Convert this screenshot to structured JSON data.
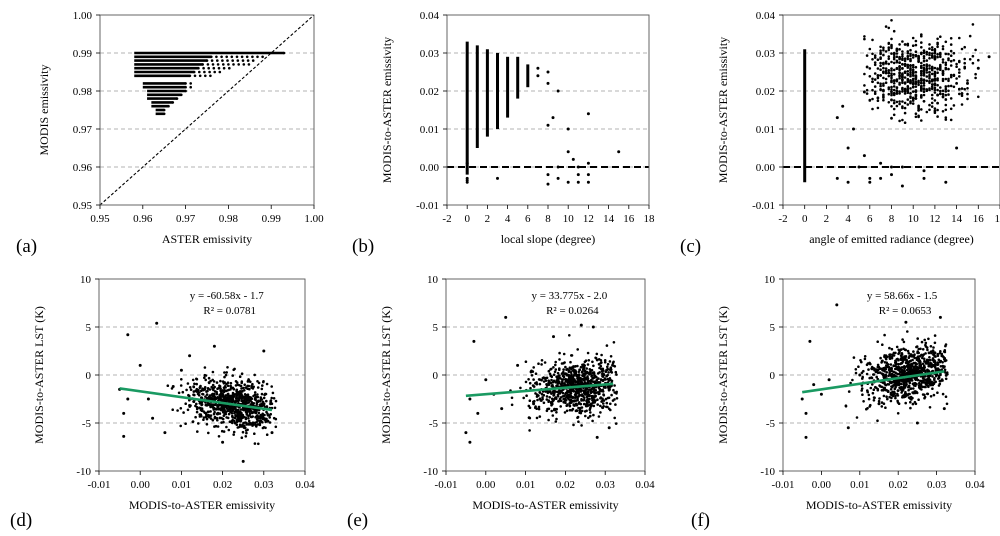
{
  "figure": {
    "panel_labels": [
      "(a)",
      "(b)",
      "(c)",
      "(d)",
      "(e)",
      "(f)"
    ]
  },
  "chart_data": [
    {
      "id": "a",
      "type": "scatter",
      "xlabel": "ASTER emissivity",
      "ylabel": "MODIS emissivity",
      "xlim": [
        0.95,
        1.0
      ],
      "ylim": [
        0.95,
        1.0
      ],
      "xticks": [
        0.95,
        0.96,
        0.97,
        0.98,
        0.99,
        1.0
      ],
      "yticks": [
        0.95,
        0.96,
        0.97,
        0.98,
        0.99,
        1.0
      ],
      "tick_decimals": 2,
      "grid_y": true,
      "reference_line": {
        "style": "dashed",
        "x": [
          0.95,
          1.0
        ],
        "y": [
          0.95,
          1.0
        ]
      },
      "rows": [
        {
          "y": 0.99,
          "x_start": 0.958,
          "x_end": 0.993,
          "tail_to": 0.994
        },
        {
          "y": 0.989,
          "x_start": 0.958,
          "x_end": 0.976,
          "tail_to": 0.988
        },
        {
          "y": 0.988,
          "x_start": 0.958,
          "x_end": 0.975,
          "tail_to": 0.986
        },
        {
          "y": 0.987,
          "x_start": 0.958,
          "x_end": 0.974,
          "tail_to": 0.985
        },
        {
          "y": 0.986,
          "x_start": 0.958,
          "x_end": 0.973,
          "tail_to": 0.981
        },
        {
          "y": 0.985,
          "x_start": 0.958,
          "x_end": 0.972,
          "tail_to": 0.978
        },
        {
          "y": 0.984,
          "x_start": 0.958,
          "x_end": 0.971,
          "tail_to": 0.976
        },
        {
          "y": 0.982,
          "x_start": 0.96,
          "x_end": 0.97,
          "tail_to": 0.972
        },
        {
          "y": 0.981,
          "x_start": 0.96,
          "x_end": 0.97,
          "tail_to": 0.972
        },
        {
          "y": 0.98,
          "x_start": 0.961,
          "x_end": 0.97,
          "tail_to": 0.971
        },
        {
          "y": 0.979,
          "x_start": 0.961,
          "x_end": 0.969,
          "tail_to": 0.97
        },
        {
          "y": 0.978,
          "x_start": 0.961,
          "x_end": 0.968,
          "tail_to": 0.969
        },
        {
          "y": 0.977,
          "x_start": 0.962,
          "x_end": 0.967,
          "tail_to": 0.968
        },
        {
          "y": 0.976,
          "x_start": 0.962,
          "x_end": 0.966,
          "tail_to": 0.967
        },
        {
          "y": 0.975,
          "x_start": 0.963,
          "x_end": 0.965,
          "tail_to": 0.966
        },
        {
          "y": 0.974,
          "x_start": 0.963,
          "x_end": 0.965,
          "tail_to": 0.965
        }
      ]
    },
    {
      "id": "b",
      "type": "scatter",
      "xlabel": "local slope (degree)",
      "ylabel": "MODIS-to-ASTER emissivity",
      "xlim": [
        -2,
        18
      ],
      "ylim": [
        -0.01,
        0.04
      ],
      "xticks": [
        -2,
        0,
        2,
        4,
        6,
        8,
        10,
        12,
        14,
        16,
        18
      ],
      "yticks": [
        -0.01,
        0.0,
        0.01,
        0.02,
        0.03,
        0.04
      ],
      "tick_decimals": 2,
      "grid_y": true,
      "zero_line": true,
      "columns": [
        {
          "x": 0,
          "y_min": -0.002,
          "y_max": 0.033
        },
        {
          "x": 1,
          "y_min": 0.005,
          "y_max": 0.032
        },
        {
          "x": 2,
          "y_min": 0.008,
          "y_max": 0.031
        },
        {
          "x": 3,
          "y_min": 0.01,
          "y_max": 0.03
        },
        {
          "x": 4,
          "y_min": 0.013,
          "y_max": 0.029
        },
        {
          "x": 5,
          "y_min": 0.018,
          "y_max": 0.029
        },
        {
          "x": 6,
          "y_min": 0.021,
          "y_max": 0.027
        }
      ],
      "points": [
        [
          0,
          -0.004
        ],
        [
          0,
          -0.0035
        ],
        [
          0,
          -0.003
        ],
        [
          0,
          0.001
        ],
        [
          3,
          -0.003
        ],
        [
          7,
          0.026
        ],
        [
          7,
          0.024
        ],
        [
          8,
          0.025
        ],
        [
          8,
          0.022
        ],
        [
          8,
          0.011
        ],
        [
          8,
          -0.002
        ],
        [
          8,
          -0.0045
        ],
        [
          8.5,
          0.013
        ],
        [
          9,
          0.02
        ],
        [
          9,
          0.0
        ],
        [
          9,
          -0.003
        ],
        [
          10,
          0.01
        ],
        [
          10,
          0.004
        ],
        [
          10,
          -0.004
        ],
        [
          10.5,
          0.002
        ],
        [
          11,
          0.0
        ],
        [
          11,
          -0.002
        ],
        [
          11,
          -0.004
        ],
        [
          12,
          0.014
        ],
        [
          12,
          0.001
        ],
        [
          12,
          -0.002
        ],
        [
          12,
          -0.004
        ],
        [
          15,
          0.004
        ]
      ]
    },
    {
      "id": "c",
      "type": "scatter",
      "xlabel": "angle of emitted radiance (degree)",
      "ylabel": "MODIS-to-ASTER emissivity",
      "xlim": [
        -2,
        18
      ],
      "ylim": [
        -0.01,
        0.04
      ],
      "xticks": [
        -2,
        0,
        2,
        4,
        6,
        8,
        10,
        12,
        14,
        16,
        18
      ],
      "yticks": [
        -0.01,
        0.0,
        0.01,
        0.02,
        0.03,
        0.04
      ],
      "tick_decimals": 2,
      "grid_y": true,
      "zero_line": true,
      "columns": [
        {
          "x": 0,
          "y_min": -0.004,
          "y_max": 0.031
        }
      ],
      "cloud": {
        "x_center": 10,
        "y_center": 0.024,
        "x_spread": 2.6,
        "y_spread": 0.005,
        "count": 700
      },
      "points": [
        [
          3,
          -0.003
        ],
        [
          3,
          0.013
        ],
        [
          3.5,
          0.016
        ],
        [
          4,
          -0.004
        ],
        [
          4,
          0.005
        ],
        [
          4.5,
          0.01
        ],
        [
          5,
          0.0
        ],
        [
          5.5,
          0.003
        ],
        [
          6,
          -0.004
        ],
        [
          6,
          -0.003
        ],
        [
          7,
          0.001
        ],
        [
          7,
          -0.003
        ],
        [
          8,
          0.0
        ],
        [
          8,
          -0.002
        ],
        [
          9,
          0.0
        ],
        [
          9,
          -0.005
        ],
        [
          11,
          -0.001
        ],
        [
          11,
          -0.003
        ],
        [
          13,
          -0.004
        ],
        [
          14,
          0.005
        ],
        [
          15,
          0.022
        ],
        [
          16,
          0.026
        ],
        [
          17,
          0.029
        ]
      ]
    },
    {
      "id": "d",
      "type": "scatter",
      "xlabel": "MODIS-to-ASTER emissivity",
      "ylabel": "MODIS-to-ASTER LST (K)",
      "xlim": [
        -0.01,
        0.04
      ],
      "ylim": [
        -10,
        10
      ],
      "xticks": [
        -0.01,
        0.0,
        0.01,
        0.02,
        0.03,
        0.04
      ],
      "yticks": [
        -10,
        -5,
        0,
        5,
        10
      ],
      "tick_decimals": 2,
      "grid_y": true,
      "equation": "y = -60.58x - 1.7",
      "r2": "R² = 0.0781",
      "trend": {
        "slope": -60.58,
        "intercept": -1.7,
        "x_range": [
          -0.005,
          0.032
        ],
        "color": "#1a9a62"
      },
      "cloud": {
        "x_center": 0.023,
        "y_center": -3.0,
        "x_spread": 0.006,
        "y_spread": 1.3,
        "count": 900
      },
      "points": [
        [
          -0.005,
          -1.5
        ],
        [
          -0.004,
          -4.0
        ],
        [
          -0.004,
          -6.4
        ],
        [
          -0.003,
          -2.5
        ],
        [
          -0.003,
          4.2
        ],
        [
          0.0,
          1.0
        ],
        [
          0.002,
          -2.5
        ],
        [
          0.003,
          -4.5
        ],
        [
          0.004,
          5.4
        ],
        [
          0.006,
          -6.0
        ],
        [
          0.008,
          -1.2
        ],
        [
          0.01,
          0.5
        ],
        [
          0.012,
          2.0
        ],
        [
          0.018,
          3.0
        ],
        [
          0.02,
          -7.0
        ],
        [
          0.025,
          -9.0
        ],
        [
          0.03,
          2.5
        ],
        [
          0.031,
          -4.8
        ],
        [
          0.032,
          -6.0
        ]
      ]
    },
    {
      "id": "e",
      "type": "scatter",
      "xlabel": "MODIS-to-ASTER emissivity",
      "ylabel": "MODIS-to-ASTER LST (K)",
      "xlim": [
        -0.01,
        0.04
      ],
      "ylim": [
        -10,
        10
      ],
      "xticks": [
        -0.01,
        0.0,
        0.01,
        0.02,
        0.03,
        0.04
      ],
      "yticks": [
        -10,
        -5,
        0,
        5,
        10
      ],
      "tick_decimals": 2,
      "grid_y": true,
      "equation": "y = 33.775x - 2.0",
      "r2": "R² = 0.0264",
      "trend": {
        "slope": 33.775,
        "intercept": -2.0,
        "x_range": [
          -0.005,
          0.032
        ],
        "color": "#1a9a62"
      },
      "cloud": {
        "x_center": 0.023,
        "y_center": -1.2,
        "x_spread": 0.006,
        "y_spread": 1.4,
        "count": 900
      },
      "points": [
        [
          -0.005,
          -6.0
        ],
        [
          -0.004,
          -7.0
        ],
        [
          -0.004,
          -2.5
        ],
        [
          -0.003,
          3.5
        ],
        [
          -0.002,
          -4.0
        ],
        [
          0.0,
          -0.5
        ],
        [
          0.002,
          -2.0
        ],
        [
          0.004,
          -3.5
        ],
        [
          0.005,
          6.0
        ],
        [
          0.008,
          1.0
        ],
        [
          0.012,
          -3.0
        ],
        [
          0.017,
          4.0
        ],
        [
          0.024,
          5.2
        ],
        [
          0.027,
          5.0
        ],
        [
          0.028,
          -6.5
        ],
        [
          0.031,
          -5.5
        ]
      ]
    },
    {
      "id": "f",
      "type": "scatter",
      "xlabel": "MODIS-to-ASTER emissivity",
      "ylabel": "MODIS-to-ASTER LST (K)",
      "xlim": [
        -0.01,
        0.04
      ],
      "ylim": [
        -10,
        10
      ],
      "xticks": [
        -0.01,
        0.0,
        0.01,
        0.02,
        0.03,
        0.04
      ],
      "yticks": [
        -10,
        -5,
        0,
        5,
        10
      ],
      "tick_decimals": 2,
      "grid_y": true,
      "equation": "y = 58.66x - 1.5",
      "r2": "R² = 0.0653",
      "trend": {
        "slope": 58.66,
        "intercept": -1.5,
        "x_range": [
          -0.005,
          0.032
        ],
        "color": "#1a9a62"
      },
      "cloud": {
        "x_center": 0.023,
        "y_center": 0.2,
        "x_spread": 0.006,
        "y_spread": 1.4,
        "count": 900
      },
      "points": [
        [
          -0.005,
          -2.5
        ],
        [
          -0.004,
          -6.5
        ],
        [
          -0.004,
          -4.0
        ],
        [
          -0.003,
          3.5
        ],
        [
          -0.002,
          -1.0
        ],
        [
          0.0,
          -2.0
        ],
        [
          0.002,
          -0.5
        ],
        [
          0.004,
          7.3
        ],
        [
          0.007,
          -5.5
        ],
        [
          0.01,
          0.0
        ],
        [
          0.015,
          -3.0
        ],
        [
          0.022,
          5.5
        ],
        [
          0.025,
          -5.0
        ],
        [
          0.031,
          6.0
        ],
        [
          0.032,
          -3.5
        ]
      ]
    }
  ]
}
